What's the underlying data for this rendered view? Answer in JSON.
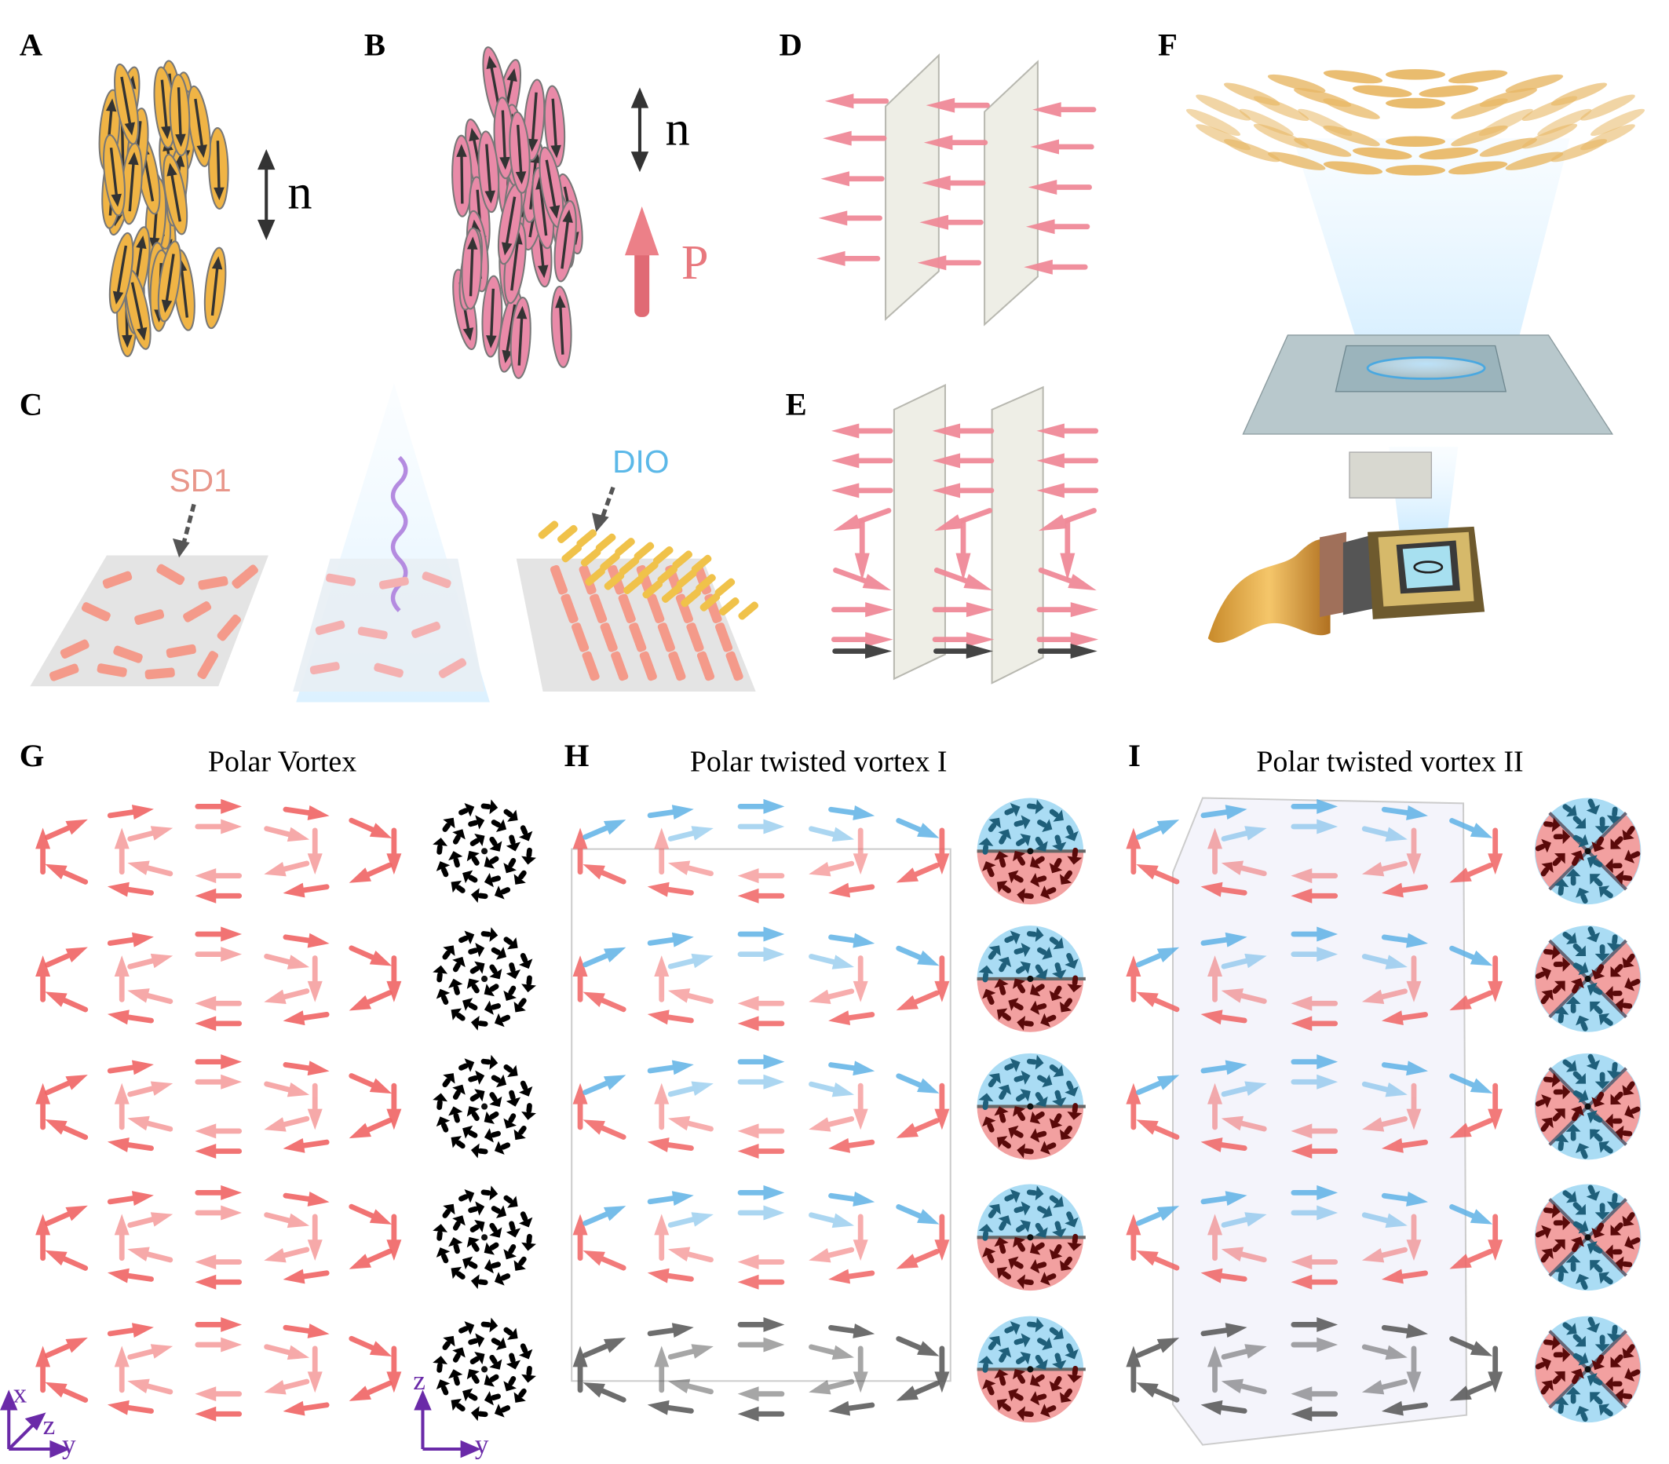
{
  "panels": {
    "A": {
      "label": "A",
      "director": "n"
    },
    "B": {
      "label": "B",
      "director": "n",
      "polarization": "P"
    },
    "C": {
      "label": "C",
      "molecule_1": "SD1",
      "molecule_2": "DIO"
    },
    "D": {
      "label": "D"
    },
    "E": {
      "label": "E"
    },
    "F": {
      "label": "F"
    },
    "G": {
      "label": "G",
      "title": "Polar Vortex"
    },
    "H": {
      "label": "H",
      "title": "Polar twisted vortex I"
    },
    "I": {
      "label": "I",
      "title": "Polar twisted vortex II"
    }
  },
  "axes": {
    "left": {
      "x": "x",
      "z": "z",
      "y": "y"
    },
    "right": {
      "z": "z",
      "y": "y"
    }
  },
  "colors": {
    "nonpolar_molecule": "#f0b445",
    "polar_molecule": "#e98aa8",
    "polarization_red": "#f06464",
    "polarization_blue": "#5fb2e6",
    "bottom_layer": "#555555",
    "axis": "#6a2aa8",
    "sd1_text": "#e8968a",
    "dio_text": "#5bb8e8"
  }
}
